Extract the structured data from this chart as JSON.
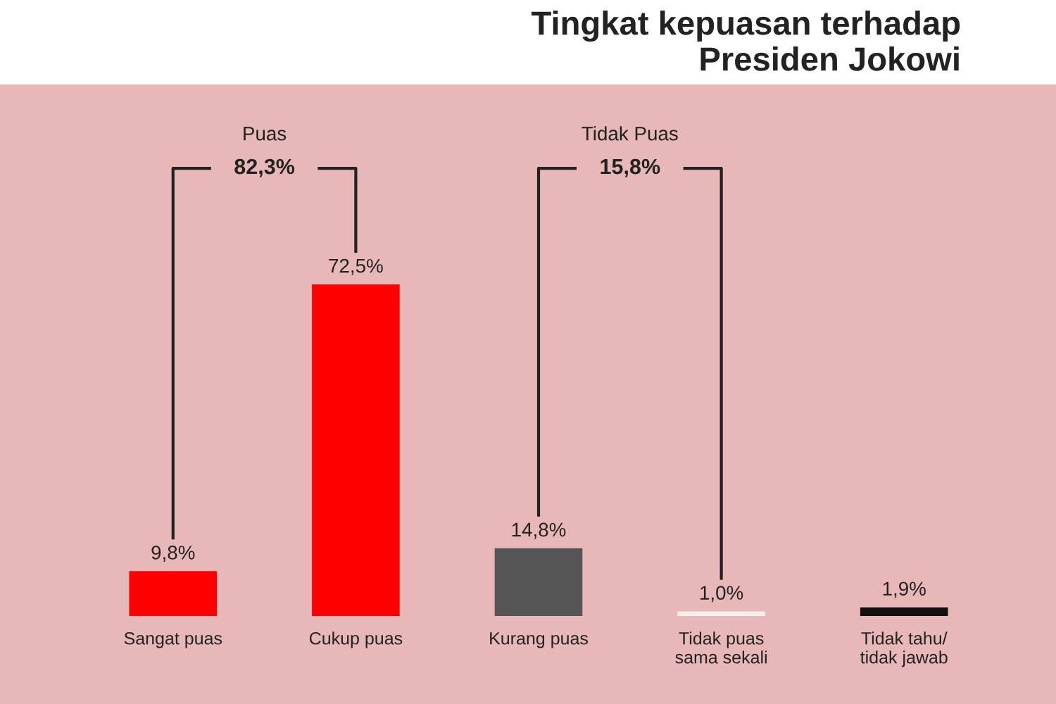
{
  "chart_data": {
    "type": "bar",
    "title": "Tingkat kepuasan terhadap\nPresiden Jokowi",
    "categories": [
      "Sangat puas",
      "Cukup puas",
      "Kurang puas",
      "Tidak puas\nsama sekali",
      "Tidak tahu/\ntidak jawab"
    ],
    "values": [
      9.8,
      72.5,
      14.8,
      1.0,
      1.9
    ],
    "colors": [
      "#ff0000",
      "#ff0000",
      "#555555",
      "#f4f0ee",
      "#111111"
    ],
    "value_labels": [
      "9,8%",
      "72,5%",
      "14,8%",
      "1,0%",
      "1,9%"
    ],
    "annotations": [
      "Puas",
      "82,3%",
      "Tidak Puas",
      "15,8%"
    ],
    "grid": false,
    "legend": false,
    "tick_labels": "x"
  }
}
